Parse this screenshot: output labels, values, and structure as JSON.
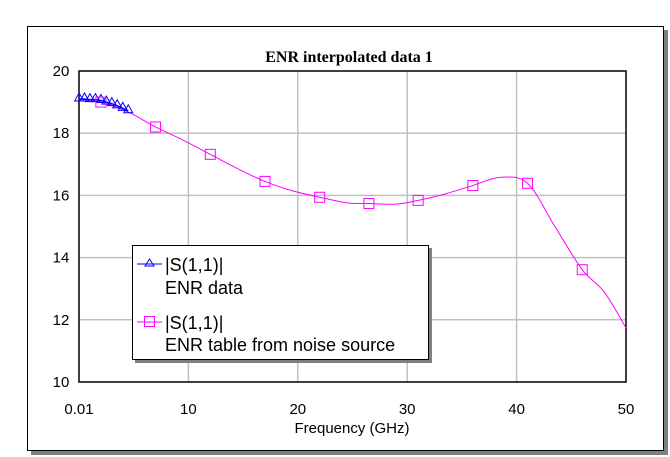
{
  "chart_data": {
    "type": "line",
    "title": "ENR interpolated data 1",
    "xlabel": "Frequency (GHz)",
    "ylabel": "",
    "xlim": [
      0.01,
      50
    ],
    "ylim": [
      10,
      20
    ],
    "x_ticks": [
      "0.01",
      "10",
      "20",
      "30",
      "40",
      "50"
    ],
    "y_ticks": [
      "10",
      "12",
      "14",
      "16",
      "18",
      "20"
    ],
    "grid": true,
    "legend_position": "lower-left inside plot",
    "series": [
      {
        "name": "|S(1,1)| ENR data",
        "legend_line1": "|S(1,1)|",
        "legend_line2": "ENR data",
        "color": "#0000ff",
        "marker": "triangle",
        "x": [
          0.01,
          0.5,
          1.0,
          1.5,
          2.0,
          2.5,
          3.0,
          3.5,
          4.0,
          4.5
        ],
        "values": [
          19.1,
          19.1,
          19.08,
          19.08,
          19.05,
          19.0,
          18.95,
          18.88,
          18.8,
          18.72
        ]
      },
      {
        "name": "|S(1,1)| ENR table from noise source",
        "legend_line1": "|S(1,1)|",
        "legend_line2": "ENR table from noise source",
        "color": "#ff00ff",
        "marker": "square",
        "x": [
          2,
          7,
          12,
          17,
          22,
          26.5,
          31,
          36,
          41,
          46
        ],
        "values": [
          19.0,
          18.2,
          17.32,
          16.45,
          15.94,
          15.74,
          15.84,
          16.32,
          16.39,
          13.61
        ],
        "curve_x": [
          0.01,
          2,
          4.5,
          7,
          9.5,
          12,
          14.5,
          17,
          19.5,
          22,
          24.5,
          26.5,
          29,
          31,
          33.5,
          36,
          38.5,
          41,
          43.5,
          46,
          48,
          50
        ],
        "curve_values": [
          19.1,
          19.0,
          18.68,
          18.2,
          17.78,
          17.32,
          16.86,
          16.45,
          16.15,
          15.94,
          15.76,
          15.74,
          15.72,
          15.84,
          16.05,
          16.32,
          16.58,
          16.39,
          15.0,
          13.61,
          12.9,
          11.74
        ]
      }
    ]
  }
}
